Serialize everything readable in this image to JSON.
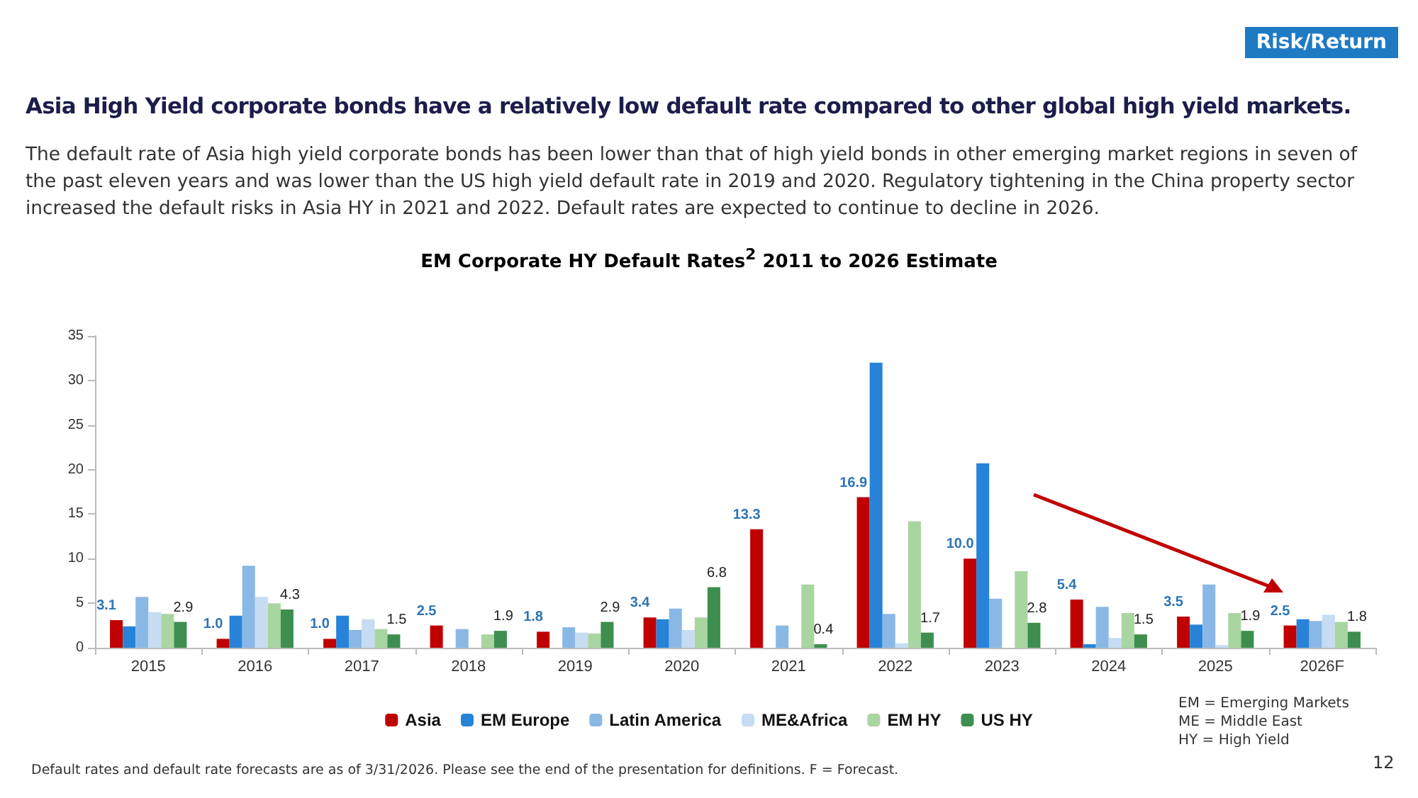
{
  "chart_data": {
    "type": "bar",
    "title": "Asia High Yield corporate bonds have a relatively low default rate compared to other global high yield markets.",
    "subtitle": "The default rate of Asia high yield corporate bonds has been lower than that of high yield bonds in other emerging market regions in seven of the past eleven years and was lower than the US high yield default rate in 2019 and 2020.   Regulatory tightening in the China property sector increased the default risks in Asia HY in 2021 and 2022. Default rates are expected to continue to decline in 2026.",
    "annotations": [
      "Risk/Return",
      "EM Corporate HY Default Rates$^{2}$ 2011 to 2026 Estimate",
      "EM = Emerging Markets",
      "ME = Middle East",
      "HY = High Yield",
      "Default rates and default rate forecasts are as of 3/31/2026. Please see the end of the presentation for definitions. F = Forecast.",
      "12"
    ],
    "categories": [
      "2015",
      "2016",
      "2017",
      "2018",
      "2019",
      "2020",
      "2021",
      "2022",
      "2023",
      "2024",
      "2025",
      "2026F"
    ],
    "series": [
      {
        "name": "Asia",
        "color": "#c00000",
        "values": [
          3.1,
          1.0,
          1.0,
          2.5,
          1.8,
          3.4,
          13.3,
          16.9,
          10.0,
          5.4,
          3.5,
          2.5
        ],
        "value_labels": [
          "3.1",
          "1.0",
          "1.0",
          "2.5",
          "1.8",
          "3.4",
          "13.3",
          "16.9",
          "10.0",
          "5.4",
          "3.5",
          "2.5"
        ]
      },
      {
        "name": "EM Europe",
        "color": "#2683d8",
        "values": [
          2.4,
          3.6,
          3.6,
          null,
          null,
          3.2,
          null,
          32.0,
          20.7,
          0.4,
          2.6,
          3.2
        ]
      },
      {
        "name": "Latin America",
        "color": "#8ab8e6",
        "values": [
          5.7,
          9.2,
          2.0,
          2.1,
          2.3,
          4.4,
          2.5,
          3.8,
          5.5,
          4.6,
          7.1,
          3.0
        ]
      },
      {
        "name": "ME&Africa",
        "color": "#c5dcf2",
        "values": [
          4.0,
          5.7,
          3.2,
          null,
          1.7,
          2.0,
          null,
          0.5,
          null,
          1.1,
          0.3,
          3.7
        ]
      },
      {
        "name": "EM HY",
        "color": "#a9d5a0",
        "values": [
          3.8,
          5.0,
          2.1,
          1.5,
          1.6,
          3.4,
          7.1,
          14.2,
          8.6,
          3.9,
          3.9,
          2.9
        ]
      },
      {
        "name": "US HY",
        "color": "#3e8e4f",
        "values": [
          2.9,
          4.3,
          1.5,
          1.9,
          2.9,
          6.8,
          0.4,
          1.7,
          2.8,
          1.5,
          1.9,
          1.8
        ],
        "value_labels": [
          "2.9",
          "4.3",
          "1.5",
          "1.9",
          "2.9",
          "6.8",
          "0.4",
          "1.7",
          "2.8",
          "1.5",
          "1.9",
          "1.8"
        ]
      }
    ],
    "ylim": [
      0,
      35
    ],
    "yticks": [
      0,
      5,
      10,
      15,
      20,
      25,
      30,
      35
    ],
    "grid": false,
    "legend": "bottom"
  }
}
